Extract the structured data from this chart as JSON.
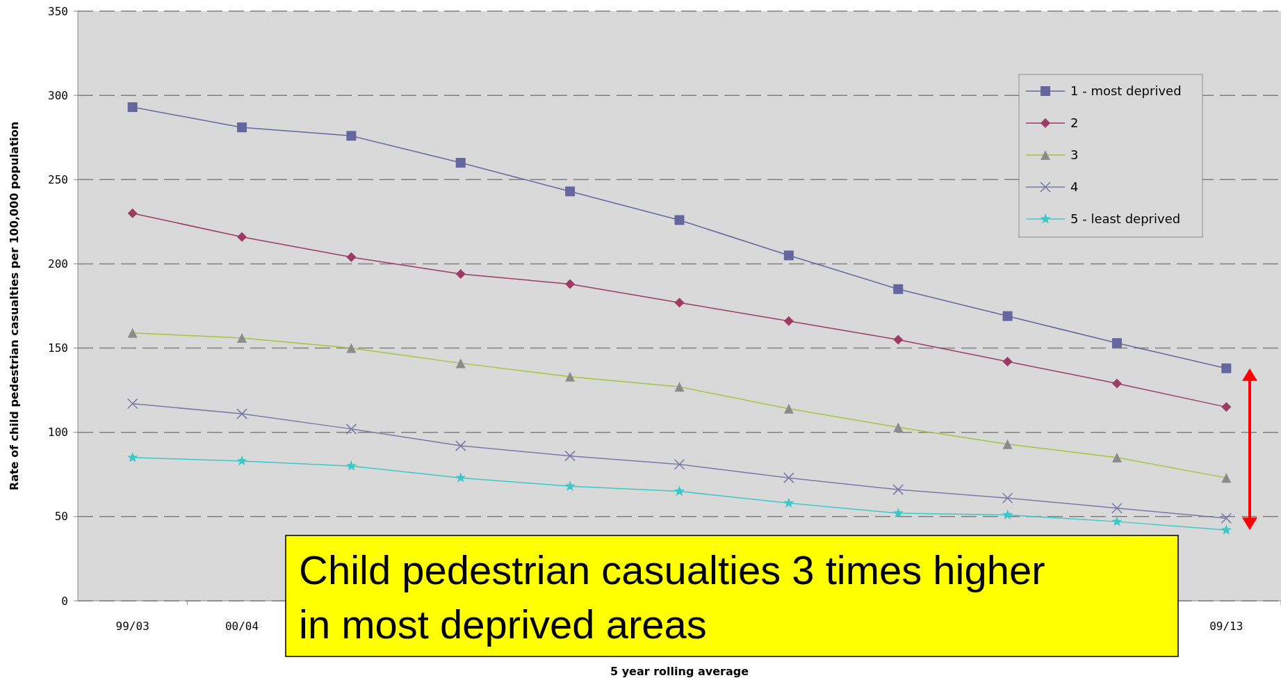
{
  "chart_data": {
    "type": "line",
    "xlabel": "5 year rolling average",
    "ylabel": "Rate of child pedestrian casualties per 100,000 population",
    "categories": [
      "99/03",
      "00/04",
      null,
      null,
      null,
      null,
      null,
      null,
      null,
      null,
      "09/13"
    ],
    "series": [
      {
        "name": "1 - most deprived",
        "color": "#6466a0",
        "marker": "square",
        "values": [
          293,
          281,
          276,
          260,
          243,
          226,
          205,
          185,
          169,
          153,
          138
        ]
      },
      {
        "name": "2",
        "color": "#9b3b66",
        "marker": "diamond",
        "values": [
          230,
          216,
          204,
          194,
          188,
          177,
          166,
          155,
          142,
          129,
          115
        ]
      },
      {
        "name": "3",
        "color": "#a6c43c",
        "marker": "triangle",
        "values": [
          159,
          156,
          150,
          141,
          133,
          127,
          114,
          103,
          93,
          85,
          73
        ]
      },
      {
        "name": "4",
        "color": "#7a78a8",
        "marker": "cross",
        "values": [
          117,
          111,
          102,
          92,
          86,
          81,
          73,
          66,
          61,
          55,
          49
        ]
      },
      {
        "name": "5 - least deprived",
        "color": "#3cc8c8",
        "marker": "star",
        "values": [
          85,
          83,
          80,
          73,
          68,
          65,
          58,
          52,
          51,
          47,
          42
        ]
      }
    ],
    "ylim": [
      0,
      350
    ],
    "yticks": [
      0,
      50,
      100,
      150,
      200,
      250,
      300,
      350
    ],
    "grid": "y",
    "legend": "top right",
    "annotations": [
      "Child pedestrian casualties 3 times higher in most deprived areas"
    ]
  }
}
